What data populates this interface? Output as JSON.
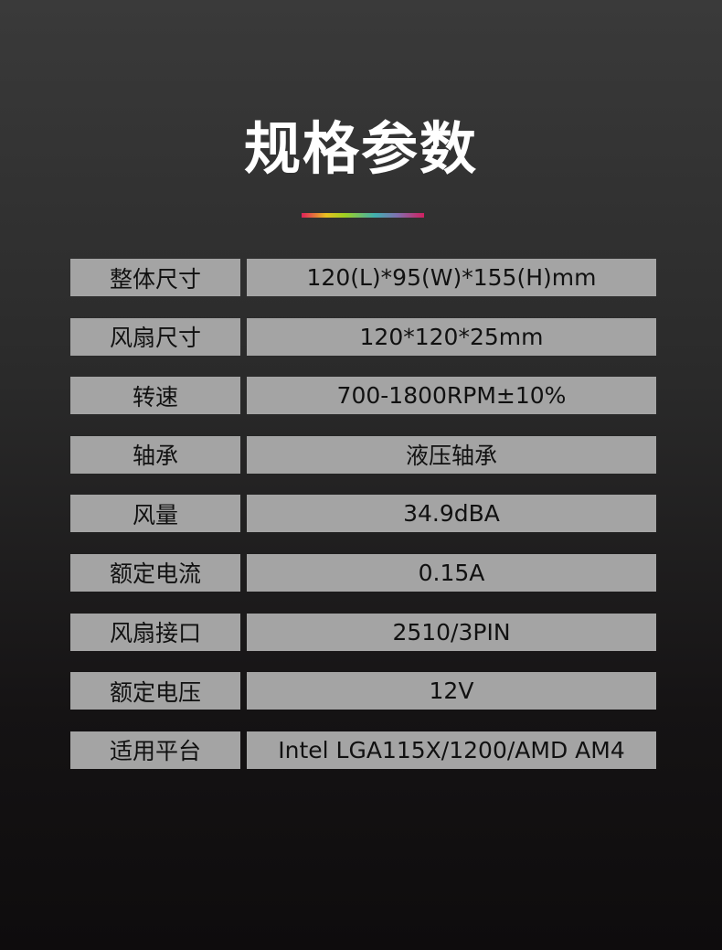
{
  "title": "规格参数",
  "accent_gradient": [
    "#e0205a",
    "#e8c020",
    "#a0d020",
    "#40b0b0",
    "#8070b0",
    "#d02060"
  ],
  "specs": [
    {
      "label": "整体尺寸",
      "value": "120(L)*95(W)*155(H)mm"
    },
    {
      "label": "风扇尺寸",
      "value": "120*120*25mm"
    },
    {
      "label": "转速",
      "value": "700-1800RPM±10%"
    },
    {
      "label": "轴承",
      "value": "液压轴承"
    },
    {
      "label": "风量",
      "value": "34.9dBA"
    },
    {
      "label": "额定电流",
      "value": "0.15A"
    },
    {
      "label": "风扇接口",
      "value": "2510/3PIN"
    },
    {
      "label": "额定电压",
      "value": "12V"
    },
    {
      "label": "适用平台",
      "value": "Intel LGA115X/1200/AMD AM4"
    }
  ]
}
